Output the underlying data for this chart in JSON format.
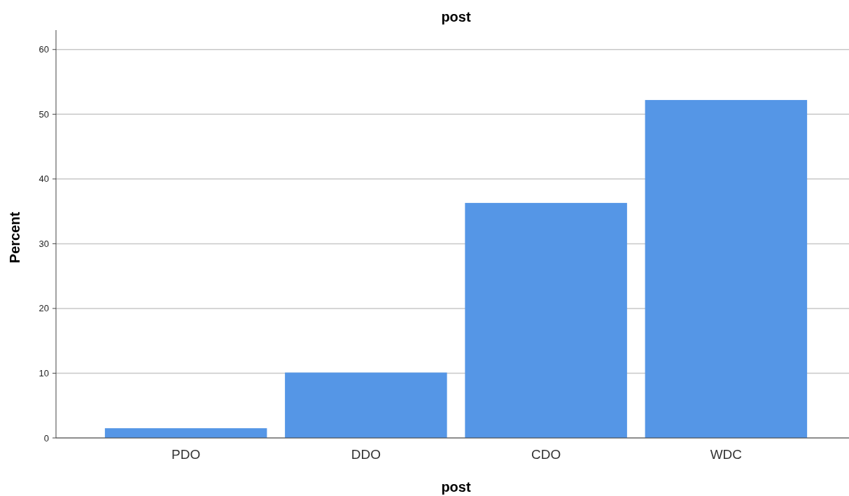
{
  "chart_data": {
    "type": "bar",
    "title": "post",
    "xlabel": "post",
    "ylabel": "Percent",
    "categories": [
      "PDO",
      "DDO",
      "CDO",
      "WDC"
    ],
    "values": [
      1.5,
      10.1,
      36.3,
      52.2
    ],
    "color": "#5596e6",
    "ylim": [
      0,
      63
    ],
    "yticks": [
      0,
      10,
      20,
      30,
      40,
      50,
      60
    ],
    "grid": "y"
  }
}
